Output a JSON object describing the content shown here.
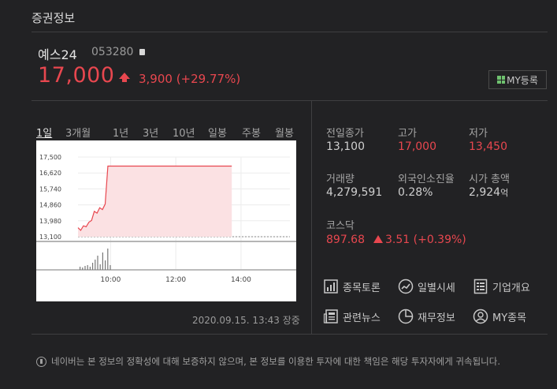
{
  "header": {
    "title": "증권정보"
  },
  "stock": {
    "name": "예스24",
    "code": "053280",
    "price": "17,000",
    "change": "3,900 (+29.77%)"
  },
  "my_button": {
    "label": "MY등록"
  },
  "periods": [
    "1일",
    "3개월",
    "1년",
    "3년",
    "10년",
    "일봉",
    "주봉",
    "월봉"
  ],
  "chart": {
    "y_ticks": [
      "17,500",
      "16,620",
      "15,740",
      "14,860",
      "13,980",
      "13,100"
    ],
    "x_ticks": [
      "10:00",
      "12:00",
      "14:00"
    ]
  },
  "chart_data": {
    "type": "area",
    "x_unit": "time",
    "x": [
      "09:00",
      "09:05",
      "09:10",
      "09:15",
      "09:20",
      "09:25",
      "09:30",
      "09:35",
      "09:40",
      "09:45",
      "09:50",
      "09:55",
      "10:00",
      "13:43"
    ],
    "values": [
      13600,
      13450,
      13700,
      13650,
      13900,
      14000,
      14500,
      14400,
      14700,
      14600,
      14900,
      17000,
      17000,
      17000
    ],
    "reference": 13100,
    "ylim": [
      13100,
      17500
    ],
    "y_ticks": [
      17500,
      16620,
      15740,
      14860,
      13980,
      13100
    ],
    "x_ticks": [
      "10:00",
      "12:00",
      "14:00"
    ]
  },
  "timestamp": "2020.09.15. 13:43 장중",
  "stats": {
    "prev_close_label": "전일종가",
    "prev_close": "13,100",
    "high_label": "고가",
    "high": "17,000",
    "low_label": "저가",
    "low": "13,450",
    "volume_label": "거래량",
    "volume": "4,279,591",
    "foreign_label": "외국인소진율",
    "foreign": "0.28%",
    "mcap_label": "시가 총액",
    "mcap": "2,924",
    "mcap_unit": "억"
  },
  "index": {
    "label": "코스닥",
    "value": "897.68",
    "change": "3.51 (+0.39%)"
  },
  "links": [
    {
      "label": "종목토론",
      "icon": "chart-board-icon"
    },
    {
      "label": "일별시세",
      "icon": "trend-circle-icon"
    },
    {
      "label": "기업개요",
      "icon": "list-icon"
    },
    {
      "label": "관련뉴스",
      "icon": "news-icon"
    },
    {
      "label": "재무정보",
      "icon": "pie-icon"
    },
    {
      "label": "MY종목",
      "icon": "person-icon"
    }
  ],
  "notice": "네이버는 본 정보의 정확성에 대해 보증하지 않으며, 본 정보를 이용한 투자에 대한 책임은 해당 투자자에게 귀속됩니다.",
  "colors": {
    "up": "#e8474f",
    "background": "#222224",
    "chart_fill": "#fbe1e3"
  }
}
